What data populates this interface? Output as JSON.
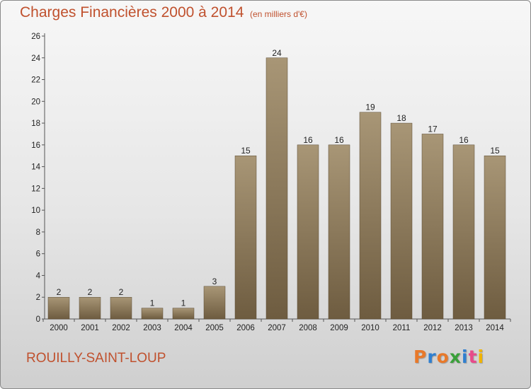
{
  "header": {
    "title": "Charges Financières 2000 à 2014",
    "subtitle": "(en milliers d'€)"
  },
  "footer": {
    "commune": "ROUILLY-SAINT-LOUP",
    "logo": "Proxiti"
  },
  "colors": {
    "title": "#c0512e",
    "bar_top": "#a89676",
    "bar_bottom": "#6e5c40",
    "logo_letters": [
      "#e8792a",
      "#2f7fd0",
      "#e8792a",
      "#3aa03a",
      "#2f7fd0",
      "#e84a8a",
      "#f0b400"
    ]
  },
  "chart_data": {
    "type": "bar",
    "title": "Charges Financières 2000 à 2014",
    "subtitle": "(en milliers d'€)",
    "categories": [
      "2000",
      "2001",
      "2002",
      "2003",
      "2004",
      "2005",
      "2006",
      "2007",
      "2008",
      "2009",
      "2010",
      "2011",
      "2012",
      "2013",
      "2014"
    ],
    "values": [
      2,
      2,
      2,
      1,
      1,
      3,
      15,
      24,
      16,
      16,
      19,
      18,
      17,
      16,
      15
    ],
    "ylim": [
      0,
      26
    ],
    "yticks": [
      0,
      2,
      4,
      6,
      8,
      10,
      12,
      14,
      16,
      18,
      20,
      22,
      24,
      26
    ],
    "grid": false,
    "data_labels": true
  }
}
